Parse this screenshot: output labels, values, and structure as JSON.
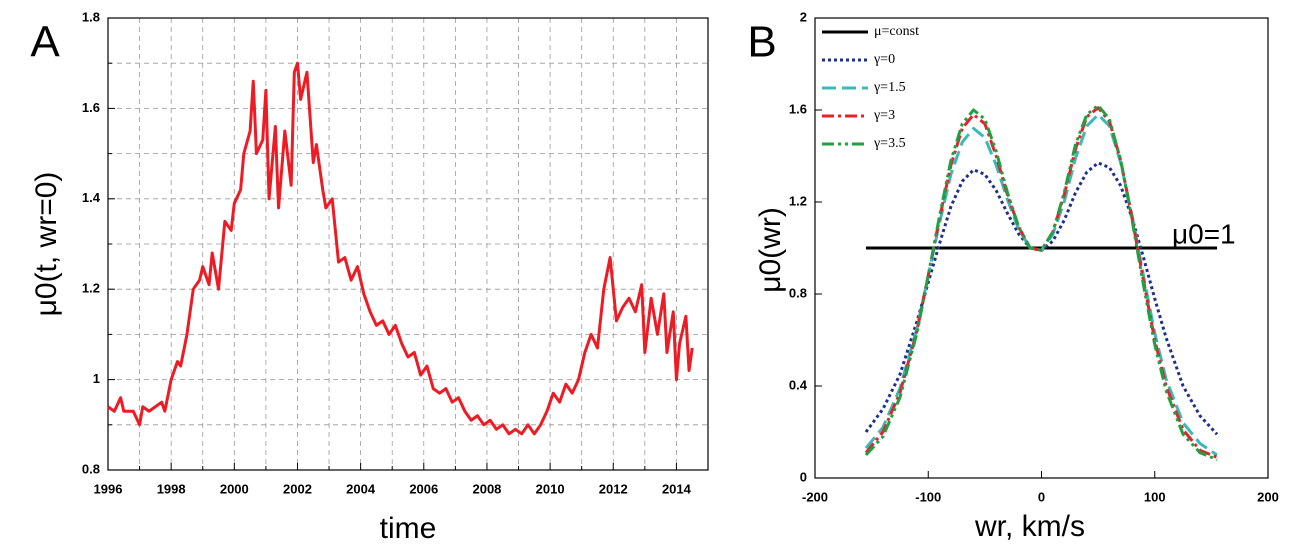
{
  "chart_data": [
    {
      "type": "line",
      "panel_label": "A",
      "xlabel": "time",
      "ylabel": "μ0(t, wr=0)",
      "xlim": [
        1996,
        2015
      ],
      "xticks": [
        1996,
        1998,
        2000,
        2002,
        2004,
        2006,
        2008,
        2010,
        2012,
        2014
      ],
      "xminorticks": [
        1997,
        1999,
        2001,
        2003,
        2005,
        2007,
        2009,
        2011,
        2013
      ],
      "ylim": [
        0.8,
        1.8
      ],
      "yticks": [
        0.8,
        1,
        1.2,
        1.4,
        1.6,
        1.8
      ],
      "yminorticks": [
        0.9,
        1.1,
        1.3,
        1.5,
        1.7
      ],
      "grid": true,
      "x": [
        1996.0,
        1996.2,
        1996.4,
        1996.5,
        1996.8,
        1997.0,
        1997.1,
        1997.3,
        1997.5,
        1997.7,
        1997.8,
        1998.0,
        1998.2,
        1998.3,
        1998.5,
        1998.7,
        1998.9,
        1999.0,
        1999.2,
        1999.3,
        1999.5,
        1999.7,
        1999.9,
        2000.0,
        2000.2,
        2000.3,
        2000.5,
        2000.6,
        2000.7,
        2000.9,
        2001.0,
        2001.1,
        2001.3,
        2001.4,
        2001.6,
        2001.8,
        2001.9,
        2002.0,
        2002.1,
        2002.3,
        2002.5,
        2002.6,
        2002.8,
        2002.9,
        2003.1,
        2003.3,
        2003.5,
        2003.7,
        2003.9,
        2004.1,
        2004.3,
        2004.5,
        2004.7,
        2004.9,
        2005.1,
        2005.3,
        2005.5,
        2005.7,
        2005.9,
        2006.1,
        2006.3,
        2006.5,
        2006.7,
        2006.9,
        2007.1,
        2007.3,
        2007.5,
        2007.7,
        2007.9,
        2008.1,
        2008.3,
        2008.5,
        2008.7,
        2008.9,
        2009.1,
        2009.3,
        2009.5,
        2009.7,
        2009.9,
        2010.1,
        2010.3,
        2010.5,
        2010.7,
        2010.9,
        2011.1,
        2011.3,
        2011.5,
        2011.7,
        2011.9,
        2012.1,
        2012.3,
        2012.5,
        2012.7,
        2012.9,
        2013.0,
        2013.2,
        2013.4,
        2013.6,
        2013.7,
        2013.9,
        2014.0,
        2014.1,
        2014.3,
        2014.4,
        2014.5
      ],
      "series": [
        {
          "color": "#ed1c24",
          "dash": "solid",
          "values": [
            0.94,
            0.93,
            0.96,
            0.93,
            0.93,
            0.9,
            0.94,
            0.93,
            0.94,
            0.95,
            0.93,
            1.0,
            1.04,
            1.03,
            1.1,
            1.2,
            1.22,
            1.25,
            1.21,
            1.28,
            1.2,
            1.35,
            1.33,
            1.39,
            1.42,
            1.5,
            1.55,
            1.66,
            1.5,
            1.53,
            1.64,
            1.4,
            1.56,
            1.38,
            1.55,
            1.43,
            1.68,
            1.7,
            1.62,
            1.68,
            1.48,
            1.52,
            1.42,
            1.38,
            1.4,
            1.26,
            1.27,
            1.22,
            1.25,
            1.19,
            1.15,
            1.12,
            1.13,
            1.1,
            1.12,
            1.08,
            1.05,
            1.06,
            1.01,
            1.03,
            0.98,
            0.97,
            0.98,
            0.95,
            0.96,
            0.93,
            0.91,
            0.92,
            0.9,
            0.91,
            0.89,
            0.9,
            0.88,
            0.89,
            0.88,
            0.9,
            0.88,
            0.9,
            0.93,
            0.97,
            0.95,
            0.99,
            0.97,
            1.0,
            1.06,
            1.1,
            1.07,
            1.2,
            1.27,
            1.13,
            1.16,
            1.18,
            1.15,
            1.21,
            1.06,
            1.18,
            1.1,
            1.19,
            1.06,
            1.15,
            1.0,
            1.08,
            1.14,
            1.02,
            1.07
          ]
        }
      ]
    },
    {
      "type": "line",
      "panel_label": "B",
      "xlabel": "wr, km/s",
      "ylabel": "μ0(wr)",
      "annotation": "μ0=1",
      "xlim": [
        -200,
        200
      ],
      "xticks": [
        -200,
        -100,
        0,
        100,
        200
      ],
      "ylim": [
        0,
        2
      ],
      "yticks": [
        0,
        0.4,
        0.8,
        1.2,
        1.6,
        2
      ],
      "grid": false,
      "legend": "upper left",
      "x": [
        -155,
        -140,
        -125,
        -110,
        -100,
        -90,
        -80,
        -70,
        -60,
        -50,
        -40,
        -30,
        -20,
        -10,
        0,
        10,
        20,
        30,
        40,
        50,
        60,
        70,
        80,
        90,
        100,
        110,
        125,
        140,
        155
      ],
      "series": [
        {
          "name": "μ=const",
          "color": "#000000",
          "dash": "solid",
          "values": [
            1,
            1,
            1,
            1,
            1,
            1,
            1,
            1,
            1,
            1,
            1,
            1,
            1,
            1,
            1,
            1,
            1,
            1,
            1,
            1,
            1,
            1,
            1,
            1,
            1,
            1,
            1,
            1,
            1
          ]
        },
        {
          "name": "γ=0",
          "color": "#1f2f8f",
          "dash": "dot",
          "values": [
            0.2,
            0.3,
            0.45,
            0.68,
            0.85,
            1.02,
            1.18,
            1.29,
            1.34,
            1.32,
            1.25,
            1.15,
            1.06,
            1.0,
            0.99,
            1.03,
            1.12,
            1.24,
            1.33,
            1.37,
            1.35,
            1.27,
            1.13,
            0.96,
            0.78,
            0.61,
            0.4,
            0.27,
            0.19
          ]
        },
        {
          "name": "γ=1.5",
          "color": "#3cb8b8",
          "dash": "dash",
          "values": [
            0.13,
            0.22,
            0.39,
            0.65,
            0.88,
            1.11,
            1.32,
            1.46,
            1.52,
            1.48,
            1.36,
            1.21,
            1.08,
            1.0,
            0.99,
            1.06,
            1.2,
            1.39,
            1.53,
            1.58,
            1.53,
            1.37,
            1.14,
            0.88,
            0.63,
            0.43,
            0.24,
            0.15,
            0.1
          ]
        },
        {
          "name": "γ=3",
          "color": "#e8202a",
          "dash": "dashdot",
          "values": [
            0.11,
            0.2,
            0.37,
            0.64,
            0.88,
            1.13,
            1.36,
            1.52,
            1.58,
            1.54,
            1.4,
            1.23,
            1.09,
            1.0,
            0.99,
            1.07,
            1.23,
            1.43,
            1.57,
            1.61,
            1.55,
            1.38,
            1.13,
            0.86,
            0.6,
            0.4,
            0.21,
            0.12,
            0.09
          ]
        },
        {
          "name": "γ=3.5",
          "color": "#20a040",
          "dash": "dashdotdot",
          "values": [
            0.1,
            0.18,
            0.35,
            0.63,
            0.88,
            1.14,
            1.38,
            1.54,
            1.6,
            1.56,
            1.42,
            1.24,
            1.09,
            1.0,
            0.99,
            1.07,
            1.24,
            1.45,
            1.58,
            1.62,
            1.56,
            1.38,
            1.12,
            0.84,
            0.58,
            0.38,
            0.19,
            0.11,
            0.08
          ]
        }
      ]
    }
  ]
}
